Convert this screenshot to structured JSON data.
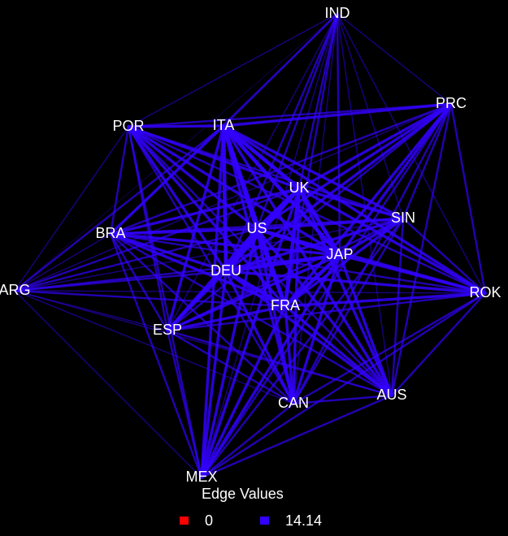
{
  "nodes": [
    {
      "id": "IND",
      "label": "IND"
    },
    {
      "id": "PRC",
      "label": "PRC"
    },
    {
      "id": "POR",
      "label": "POR"
    },
    {
      "id": "ITA",
      "label": "ITA"
    },
    {
      "id": "UK",
      "label": "UK"
    },
    {
      "id": "SIN",
      "label": "SIN"
    },
    {
      "id": "BRA",
      "label": "BRA"
    },
    {
      "id": "US",
      "label": "US"
    },
    {
      "id": "JAP",
      "label": "JAP"
    },
    {
      "id": "DEU",
      "label": "DEU"
    },
    {
      "id": "ARG",
      "label": "ARG"
    },
    {
      "id": "ROK",
      "label": "ROK"
    },
    {
      "id": "FRA",
      "label": "FRA"
    },
    {
      "id": "ESP",
      "label": "ESP"
    },
    {
      "id": "AUS",
      "label": "AUS"
    },
    {
      "id": "CAN",
      "label": "CAN"
    },
    {
      "id": "MEX",
      "label": "MEX"
    }
  ],
  "legend": {
    "title": "Edge Values",
    "items": [
      {
        "label": "0",
        "color": "#ff0000"
      },
      {
        "label": "14.14",
        "color": "#3300ff"
      }
    ]
  },
  "colors": {
    "background": "#000000",
    "edge": "#3300ff",
    "label": "#ffffff"
  }
}
